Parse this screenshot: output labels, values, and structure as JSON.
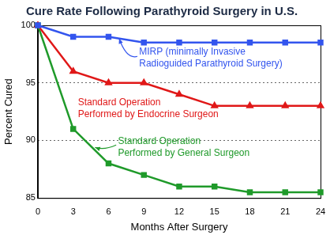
{
  "chart_data": {
    "type": "line",
    "title": "Cure Rate Following Parathyroid Surgery in U.S.",
    "x_label": "Months After Surgery",
    "y_label": "Percent Cured",
    "x": [
      0,
      3,
      6,
      9,
      12,
      15,
      18,
      21,
      24
    ],
    "xlim": [
      0,
      24
    ],
    "xticks": [
      0,
      3,
      6,
      9,
      12,
      15,
      18,
      21,
      24
    ],
    "ylim": [
      85,
      100
    ],
    "yticks": [
      85,
      90,
      95,
      100
    ],
    "grid": true,
    "series": [
      {
        "name": "MIRP (minimally Invasive\nRadioguided Parathyroid Surgery)",
        "color": "#3355ee",
        "marker": "square",
        "values": [
          100,
          99,
          99,
          98.5,
          98.5,
          98.5,
          98.5,
          98.5,
          98.5
        ]
      },
      {
        "name": "Standard Operation\nPerformed by Endocrine Surgeon",
        "color": "#e01818",
        "marker": "triangle",
        "values": [
          100,
          96,
          95,
          95,
          94,
          93,
          93,
          93,
          93
        ]
      },
      {
        "name": "Standard Operation\nPerformed by General Surgeon",
        "color": "#1f9a2a",
        "marker": "square",
        "values": [
          100,
          91,
          88,
          87,
          86,
          86,
          85.5,
          85.5,
          85.5
        ]
      }
    ]
  }
}
